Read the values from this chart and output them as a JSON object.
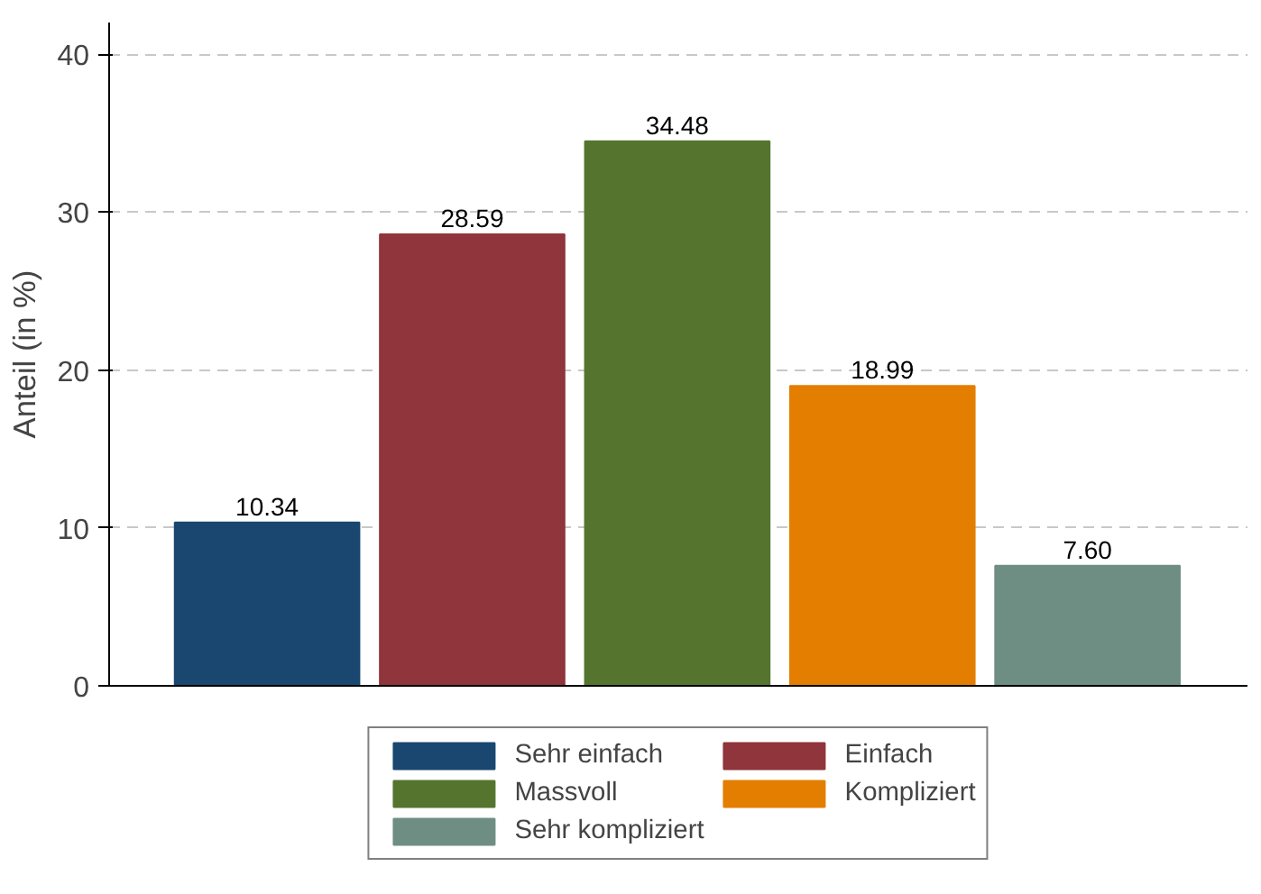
{
  "chart_data": {
    "type": "bar",
    "ylabel": "Anteil (in %)",
    "categories": [
      null,
      null,
      null,
      null,
      null
    ],
    "series": [
      {
        "name": "Sehr einfach",
        "color": "#1a476f",
        "values": [
          10.34,
          null,
          null,
          null,
          null
        ],
        "value_labels": [
          "10.34",
          null,
          null,
          null,
          null
        ]
      },
      {
        "name": "Einfach",
        "color": "#90353b",
        "values": [
          null,
          28.59,
          null,
          null,
          null
        ],
        "value_labels": [
          null,
          "28.59",
          null,
          null,
          null
        ]
      },
      {
        "name": "Massvoll",
        "color": "#55752f",
        "values": [
          null,
          null,
          34.48,
          null,
          null
        ],
        "value_labels": [
          null,
          null,
          "34.48",
          null,
          null
        ]
      },
      {
        "name": "Kompliziert",
        "color": "#e37e00",
        "values": [
          null,
          null,
          null,
          18.99,
          null
        ],
        "value_labels": [
          null,
          null,
          null,
          "18.99",
          null
        ]
      },
      {
        "name": "Sehr kompliziert",
        "color": "#6e8e84",
        "values": [
          null,
          null,
          null,
          null,
          7.6
        ],
        "value_labels": [
          null,
          null,
          null,
          null,
          "7.60"
        ]
      }
    ],
    "ylim": [
      0,
      42
    ],
    "yticks": [
      0,
      10,
      20,
      30,
      40
    ],
    "grid": "y",
    "legend": "bottom"
  }
}
